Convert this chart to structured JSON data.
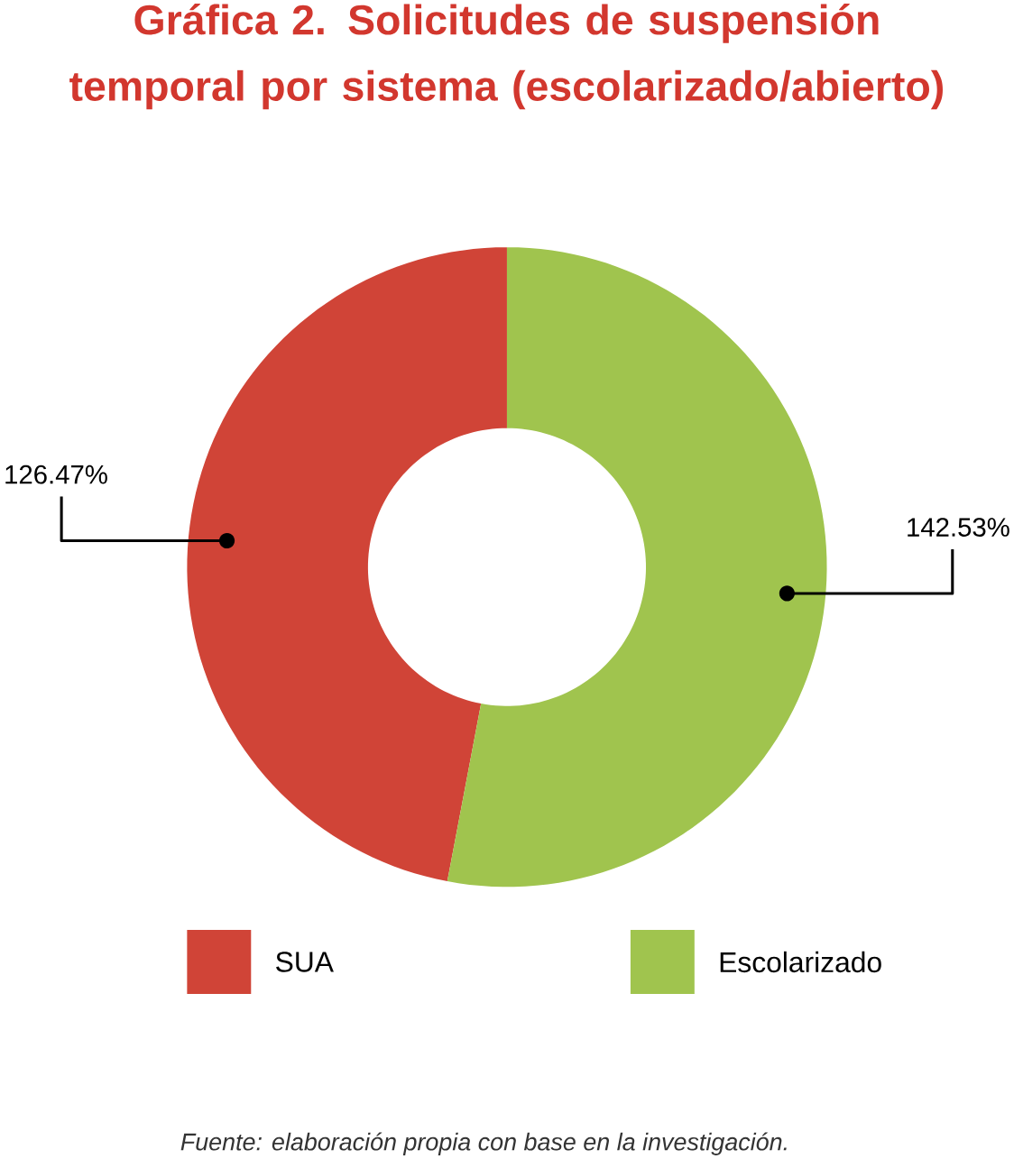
{
  "chart_data": {
    "type": "donut",
    "title": "Gráfica 2. Solicitudes de suspensión temporal por sistema (escolarizado/abierto)",
    "categories": [
      "SUA",
      "Escolarizado"
    ],
    "values": [
      126.47,
      142.53
    ],
    "colors": [
      "#d04437",
      "#a0c44e"
    ],
    "value_labels": [
      "126.47%",
      "142.53%"
    ],
    "legend": "bottom",
    "annotations": [
      "*Fuente: elaboración propia con base en la investigación.*"
    ]
  }
}
